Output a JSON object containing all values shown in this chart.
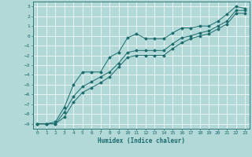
{
  "xlabel": "Humidex (Indice chaleur)",
  "bg_color": "#b2d8d8",
  "grid_color": "#ffffff",
  "line_color": "#1a6b6b",
  "xlim": [
    -0.5,
    23.5
  ],
  "ylim": [
    -9.5,
    3.5
  ],
  "xticks": [
    0,
    1,
    2,
    3,
    4,
    5,
    6,
    7,
    8,
    9,
    10,
    11,
    12,
    13,
    14,
    15,
    16,
    17,
    18,
    19,
    20,
    21,
    22,
    23
  ],
  "yticks": [
    3,
    2,
    1,
    0,
    -1,
    -2,
    -3,
    -4,
    -5,
    -6,
    -7,
    -8,
    -9
  ],
  "line1_x": [
    0,
    1,
    2,
    3,
    4,
    5,
    6,
    7,
    8,
    9,
    10,
    11,
    12,
    13,
    14,
    15,
    16,
    17,
    18,
    19,
    20,
    21,
    22,
    23
  ],
  "line1_y": [
    -9,
    -9,
    -8.8,
    -7.3,
    -5.0,
    -3.7,
    -3.7,
    -3.7,
    -2.2,
    -1.7,
    -0.2,
    0.2,
    -0.3,
    -0.3,
    -0.3,
    0.3,
    0.8,
    0.8,
    1.0,
    1.0,
    1.5,
    2.2,
    3.0,
    2.8
  ],
  "line2_x": [
    0,
    1,
    2,
    3,
    4,
    5,
    6,
    7,
    8,
    9,
    10,
    11,
    12,
    13,
    14,
    15,
    16,
    17,
    18,
    19,
    20,
    21,
    22,
    23
  ],
  "line2_y": [
    -9,
    -9,
    -9,
    -7.8,
    -6.2,
    -5.2,
    -4.7,
    -4.2,
    -3.7,
    -2.8,
    -1.7,
    -1.5,
    -1.5,
    -1.5,
    -1.5,
    -0.8,
    -0.2,
    0.0,
    0.3,
    0.5,
    1.0,
    1.5,
    2.6,
    2.6
  ],
  "line3_x": [
    0,
    1,
    2,
    3,
    4,
    5,
    6,
    7,
    8,
    9,
    10,
    11,
    12,
    13,
    14,
    15,
    16,
    17,
    18,
    19,
    20,
    21,
    22,
    23
  ],
  "line3_y": [
    -9,
    -9,
    -9,
    -8.3,
    -6.8,
    -5.8,
    -5.3,
    -4.8,
    -4.2,
    -3.2,
    -2.2,
    -2.0,
    -2.0,
    -2.0,
    -2.0,
    -1.3,
    -0.7,
    -0.3,
    0.0,
    0.2,
    0.7,
    1.2,
    2.3,
    2.3
  ]
}
